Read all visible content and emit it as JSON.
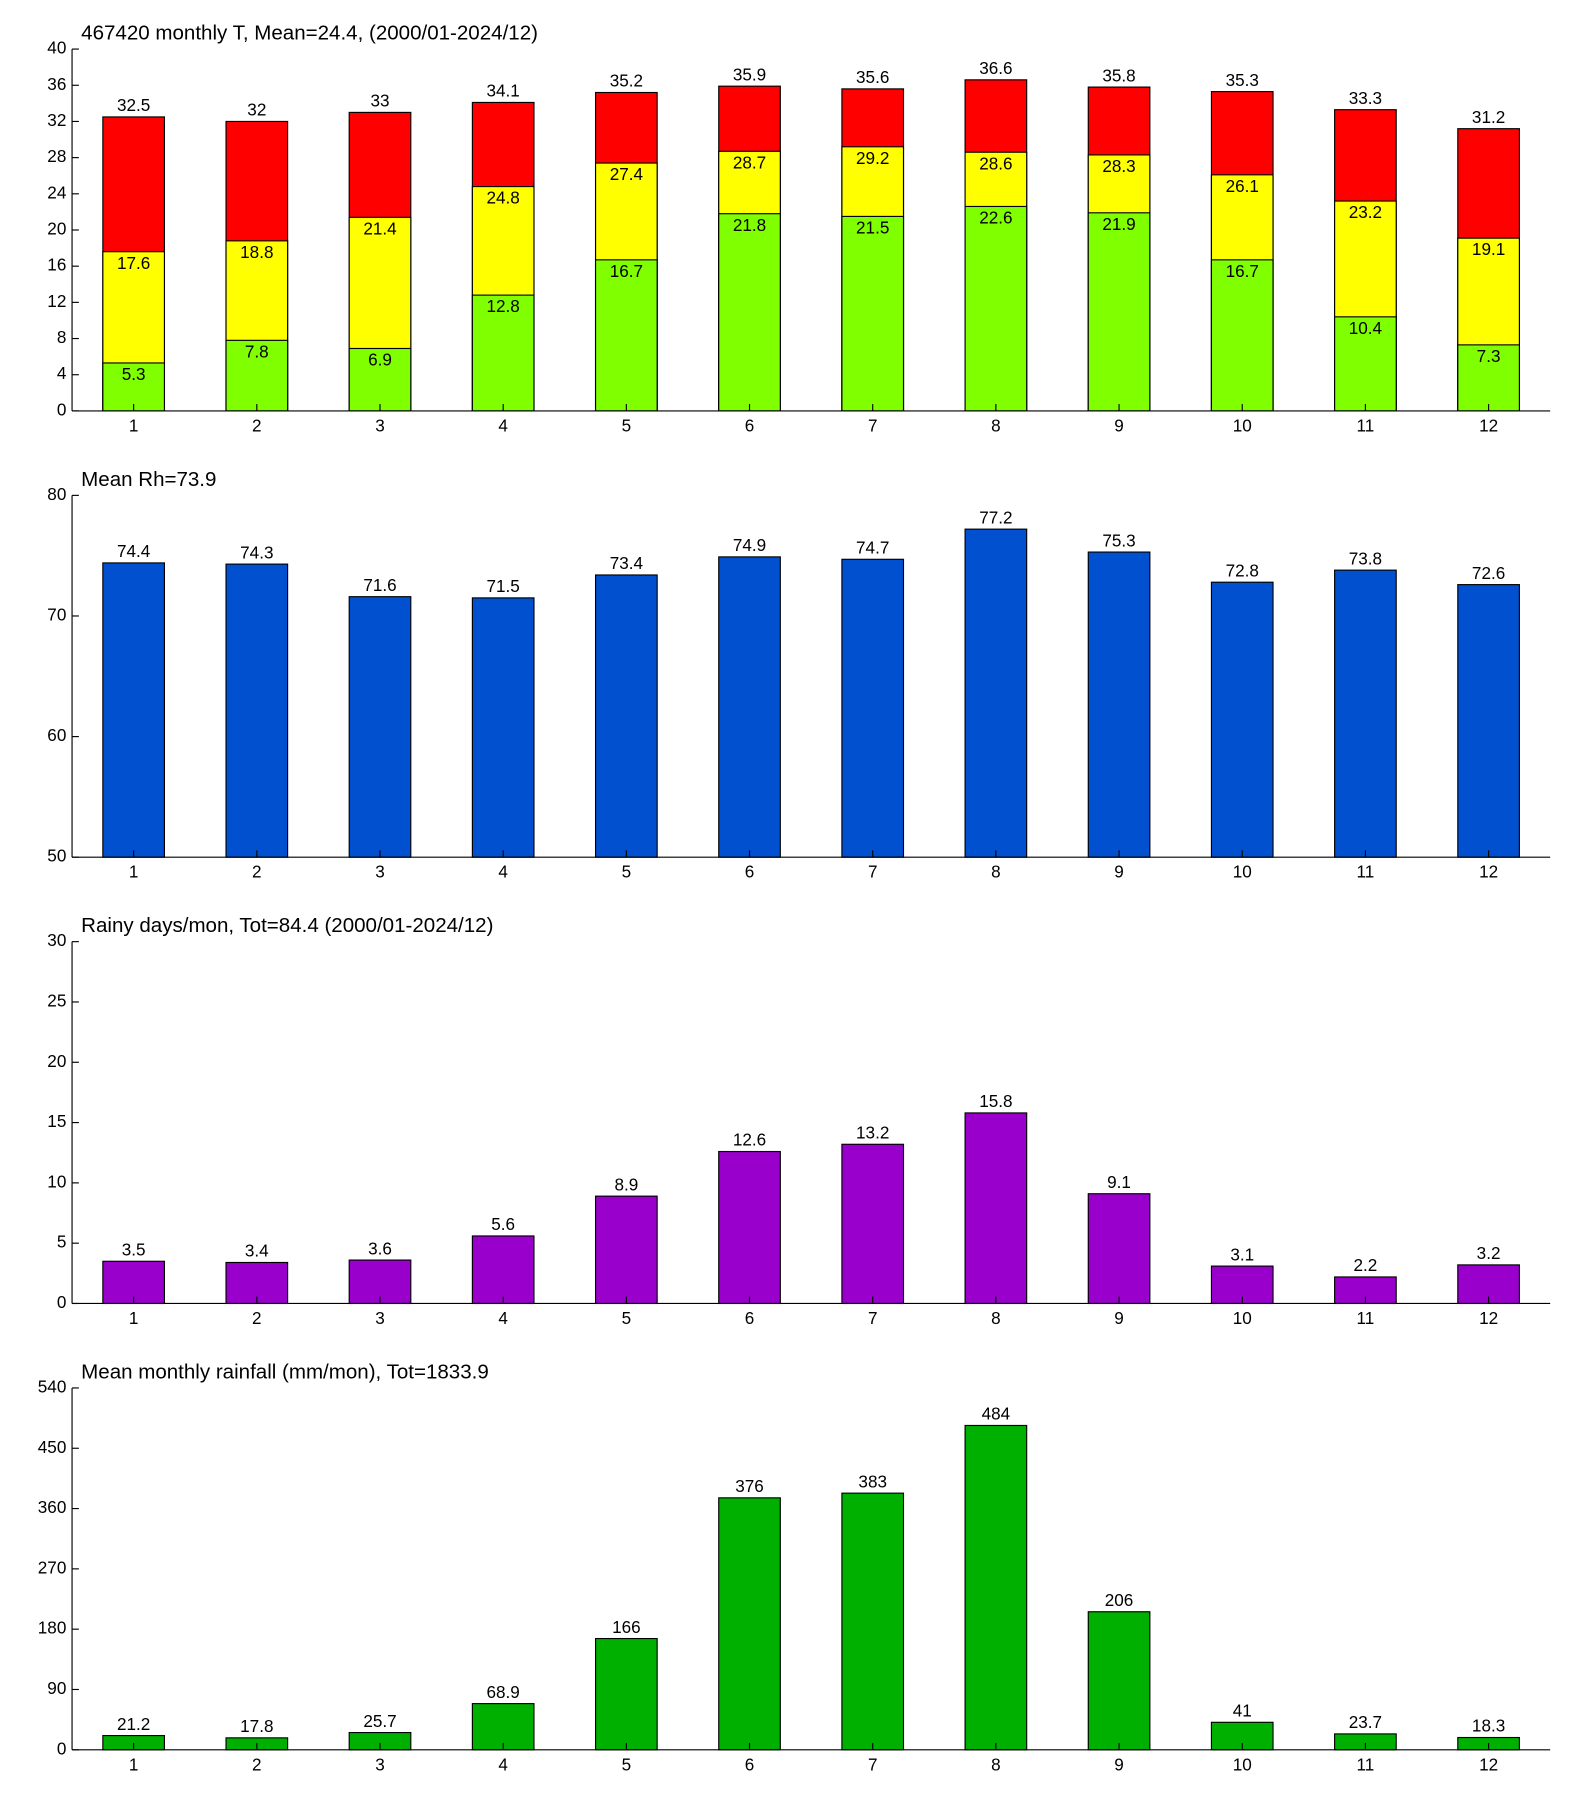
{
  "chart_data": [
    {
      "type": "bar",
      "title": "467420 monthly T, Mean=24.4, (2000/01-2024/12)",
      "categories": [
        1,
        2,
        3,
        4,
        5,
        6,
        7,
        8,
        9,
        10,
        11,
        12
      ],
      "series": [
        {
          "color": "#80ff00",
          "values": [
            5.3,
            7.8,
            6.9,
            12.8,
            16.7,
            21.8,
            21.5,
            22.6,
            21.9,
            16.7,
            10.4,
            7.3
          ]
        },
        {
          "color": "#ffff00",
          "values": [
            17.6,
            18.8,
            21.4,
            24.8,
            27.4,
            28.7,
            29.2,
            28.6,
            28.3,
            26.1,
            23.2,
            19.1
          ]
        },
        {
          "color": "#ff0000",
          "values": [
            32.5,
            32,
            33,
            34.1,
            35.2,
            35.9,
            35.6,
            36.6,
            35.8,
            35.3,
            33.3,
            31.2
          ]
        }
      ],
      "ylim": [
        0,
        40
      ],
      "yticks": [
        0,
        4,
        8,
        12,
        16,
        20,
        24,
        28,
        32,
        36,
        40
      ]
    },
    {
      "type": "bar",
      "title": "Mean Rh=73.9",
      "categories": [
        1,
        2,
        3,
        4,
        5,
        6,
        7,
        8,
        9,
        10,
        11,
        12
      ],
      "series": [
        {
          "color": "#0050d0",
          "values": [
            74.4,
            74.3,
            71.6,
            71.5,
            73.4,
            74.9,
            74.7,
            77.2,
            75.3,
            72.8,
            73.8,
            72.6
          ]
        }
      ],
      "ylim": [
        50,
        80
      ],
      "yticks": [
        50,
        60,
        70,
        80
      ]
    },
    {
      "type": "bar",
      "title": "Rainy days/mon, Tot=84.4 (2000/01-2024/12)",
      "categories": [
        1,
        2,
        3,
        4,
        5,
        6,
        7,
        8,
        9,
        10,
        11,
        12
      ],
      "series": [
        {
          "color": "#9900cc",
          "values": [
            3.5,
            3.4,
            3.6,
            5.6,
            8.9,
            12.6,
            13.2,
            15.8,
            9.1,
            3.1,
            2.2,
            3.2
          ]
        }
      ],
      "ylim": [
        0,
        30
      ],
      "yticks": [
        0,
        5,
        10,
        15,
        20,
        25,
        30
      ]
    },
    {
      "type": "bar",
      "title": "Mean monthly rainfall (mm/mon), Tot=1833.9",
      "categories": [
        1,
        2,
        3,
        4,
        5,
        6,
        7,
        8,
        9,
        10,
        11,
        12
      ],
      "series": [
        {
          "color": "#00b000",
          "values": [
            21.2,
            17.8,
            25.7,
            68.9,
            166,
            376,
            383,
            484,
            206,
            41,
            23.7,
            18.3
          ]
        }
      ],
      "ylim": [
        0,
        540
      ],
      "yticks": [
        0,
        90,
        180,
        270,
        360,
        450,
        540
      ]
    }
  ]
}
